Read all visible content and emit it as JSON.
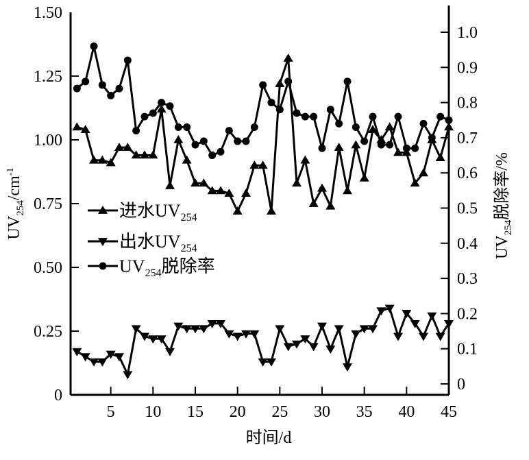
{
  "chart_data": {
    "type": "line",
    "title": "",
    "xlabel": "时间/d",
    "ylabel": {
      "base": "UV",
      "sub": "254",
      "rest": "/cm",
      "sup": "-1"
    },
    "y2label": {
      "base": "UV",
      "sub": "254",
      "rest": "脱除率/%"
    },
    "xlim": [
      0,
      45
    ],
    "ylim": [
      0,
      1.5
    ],
    "y2lim": [
      0,
      1.0
    ],
    "xticks": [
      "5",
      "10",
      "15",
      "20",
      "25",
      "30",
      "35",
      "40",
      "45"
    ],
    "yticks": [
      "0",
      "0.25",
      "0.50",
      "0.75",
      "1.00",
      "1.25",
      "1.50"
    ],
    "y2ticks": [
      "0",
      "0.1",
      "0.2",
      "0.3",
      "0.4",
      "0.5",
      "0.6",
      "0.7",
      "0.8",
      "0.9",
      "1.0"
    ],
    "grid": false,
    "legend_position": "center-left",
    "x": [
      1,
      2,
      3,
      4,
      5,
      6,
      7,
      8,
      9,
      10,
      11,
      12,
      13,
      14,
      15,
      16,
      17,
      18,
      19,
      20,
      21,
      22,
      23,
      24,
      25,
      26,
      27,
      28,
      29,
      30,
      31,
      32,
      33,
      34,
      35,
      36,
      37,
      38,
      39,
      40,
      41,
      42,
      43,
      44,
      45
    ],
    "series": [
      {
        "name": "进水UV254",
        "label": {
          "base": "进水UV",
          "sub": "254",
          "rest": ""
        },
        "axis": "left",
        "marker": "triangle-up",
        "values": [
          1.05,
          1.04,
          0.92,
          0.92,
          0.91,
          0.97,
          0.97,
          0.94,
          0.94,
          0.94,
          1.12,
          0.82,
          1.0,
          0.92,
          0.83,
          0.83,
          0.8,
          0.8,
          0.79,
          0.72,
          0.79,
          0.9,
          0.9,
          0.72,
          1.22,
          1.32,
          0.83,
          0.92,
          0.75,
          0.81,
          0.74,
          0.97,
          0.8,
          0.98,
          0.85,
          1.04,
          1.0,
          1.05,
          0.95,
          0.95,
          0.83,
          0.87,
          1.0,
          0.93,
          1.05
        ]
      },
      {
        "name": "出水UV254",
        "label": {
          "base": "出水UV",
          "sub": "254",
          "rest": ""
        },
        "axis": "left",
        "marker": "triangle-down",
        "values": [
          0.17,
          0.15,
          0.13,
          0.13,
          0.16,
          0.15,
          0.08,
          0.26,
          0.23,
          0.22,
          0.22,
          0.17,
          0.27,
          0.26,
          0.26,
          0.26,
          0.28,
          0.28,
          0.24,
          0.23,
          0.24,
          0.24,
          0.13,
          0.13,
          0.26,
          0.19,
          0.2,
          0.22,
          0.19,
          0.27,
          0.18,
          0.26,
          0.11,
          0.24,
          0.26,
          0.26,
          0.33,
          0.34,
          0.23,
          0.32,
          0.28,
          0.23,
          0.31,
          0.23,
          0.28
        ]
      },
      {
        "name": "UV254脱除率",
        "label": {
          "base": "UV",
          "sub": "254",
          "rest": "脱除率"
        },
        "axis": "right",
        "marker": "circle",
        "values": [
          0.84,
          0.86,
          0.96,
          0.85,
          0.82,
          0.84,
          0.92,
          0.72,
          0.76,
          0.77,
          0.8,
          0.79,
          0.73,
          0.73,
          0.68,
          0.69,
          0.65,
          0.66,
          0.72,
          0.69,
          0.69,
          0.73,
          0.85,
          0.8,
          0.78,
          0.86,
          0.77,
          0.76,
          0.76,
          0.67,
          0.78,
          0.74,
          0.86,
          0.73,
          0.69,
          0.76,
          0.68,
          0.68,
          0.76,
          0.67,
          0.67,
          0.74,
          0.7,
          0.76,
          0.75
        ]
      }
    ],
    "colors": {
      "line": "#000000"
    }
  }
}
